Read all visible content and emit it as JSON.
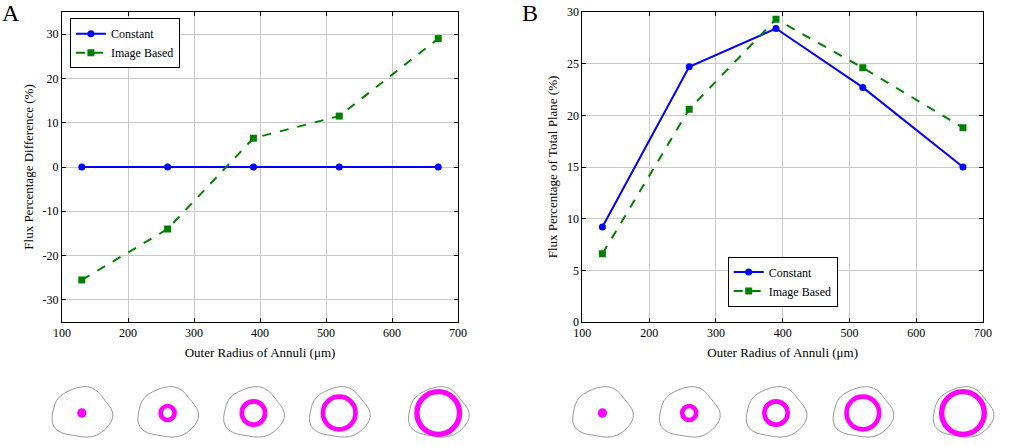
{
  "chart_data": [
    {
      "type": "line",
      "panel_label": "A",
      "x_label": "Outer Radius of Annuli (μm)",
      "y_label": "Flux Percentage Difference (%)",
      "x": [
        130,
        260,
        390,
        520,
        670
      ],
      "series": [
        {
          "name": "Constant",
          "color": "#0000ff",
          "marker": "circle",
          "line_style": "solid",
          "values": [
            0,
            0,
            0,
            0,
            0
          ]
        },
        {
          "name": "Image Based",
          "color": "#008000",
          "marker": "square",
          "line_style": "dash",
          "values": [
            -25.5,
            -14,
            6.5,
            11.5,
            29
          ]
        }
      ],
      "xlim": [
        100,
        700
      ],
      "xticks": [
        100,
        200,
        300,
        400,
        500,
        600,
        700
      ],
      "ylim": [
        -35,
        35
      ],
      "yticks": [
        -30,
        -20,
        -10,
        0,
        10,
        20,
        30
      ],
      "grid": true,
      "legend": "upper left"
    },
    {
      "type": "line",
      "panel_label": "B",
      "x_label": "Outer Radius of Annuli (μm)",
      "y_label": "Flux Percentage of Total Plane (%)",
      "x": [
        130,
        260,
        390,
        520,
        670
      ],
      "series": [
        {
          "name": "Constant",
          "color": "#0000ff",
          "marker": "circle",
          "line_style": "solid",
          "values": [
            9.2,
            24.7,
            28.4,
            22.7,
            15.0
          ]
        },
        {
          "name": "Image Based",
          "color": "#008000",
          "marker": "square",
          "line_style": "dash",
          "values": [
            6.6,
            20.6,
            29.3,
            24.6,
            18.8
          ]
        }
      ],
      "xlim": [
        100,
        700
      ],
      "xticks": [
        100,
        200,
        300,
        400,
        500,
        600,
        700
      ],
      "ylim": [
        0,
        30
      ],
      "yticks": [
        0,
        5,
        10,
        15,
        20,
        25,
        30
      ],
      "grid": true,
      "legend": "lower center"
    }
  ]
}
